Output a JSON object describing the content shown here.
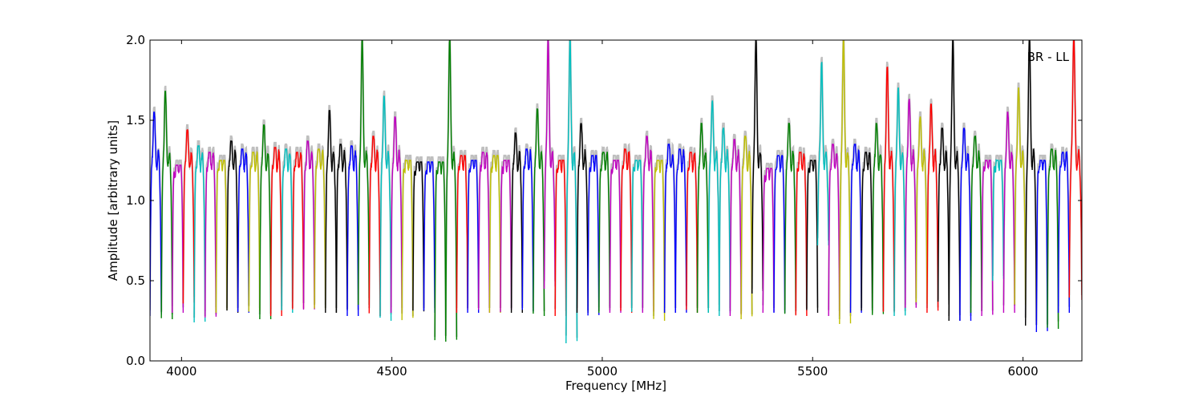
{
  "chart_data": {
    "type": "line",
    "title": "",
    "annotation": "BR - LL",
    "xlabel": "Frequency [MHz]",
    "ylabel": "Amplitude [arbitrary units]",
    "xlim": [
      3925,
      6140
    ],
    "ylim": [
      0.0,
      2.0
    ],
    "x_ticks": [
      4000,
      4500,
      5000,
      5500,
      6000
    ],
    "x_tick_labels": [
      "4000",
      "4500",
      "5000",
      "5500",
      "6000"
    ],
    "y_ticks": [
      0.0,
      0.5,
      1.0,
      1.5,
      2.0
    ],
    "y_tick_labels": [
      "0.0",
      "0.5",
      "1.0",
      "1.5",
      "2.0"
    ],
    "grid": false,
    "legend": "none",
    "background_series_color": "#bfbfbf",
    "channel_colors": [
      "#0000ff",
      "#008000",
      "#ff0000",
      "#00bfbf",
      "#bf00bf",
      "#bfbf00",
      "#000000"
    ],
    "spectral_windows": [
      {
        "x0": 3925,
        "x1": 3952,
        "peak": 1.55,
        "floor": 0.28,
        "color": "#0000ff"
      },
      {
        "x0": 3952,
        "x1": 3978,
        "peak": 1.68,
        "floor": 0.26,
        "color": "#008000"
      },
      {
        "x0": 3978,
        "x1": 4004,
        "peak": 1.22,
        "floor": 0.3,
        "color": "#bf00bf"
      },
      {
        "x0": 4004,
        "x1": 4030,
        "peak": 1.44,
        "floor": 0.35,
        "color": "#ff0000"
      },
      {
        "x0": 4030,
        "x1": 4056,
        "peak": 1.34,
        "floor": 0.24,
        "color": "#00bfbf"
      },
      {
        "x0": 4056,
        "x1": 4082,
        "peak": 1.3,
        "floor": 0.26,
        "color": "#bf00bf"
      },
      {
        "x0": 4082,
        "x1": 4108,
        "peak": 1.25,
        "floor": 0.3,
        "color": "#bfbf00"
      },
      {
        "x0": 4108,
        "x1": 4134,
        "peak": 1.37,
        "floor": 0.3,
        "color": "#000000"
      },
      {
        "x0": 4134,
        "x1": 4160,
        "peak": 1.32,
        "floor": 0.3,
        "color": "#0000ff"
      },
      {
        "x0": 4160,
        "x1": 4186,
        "peak": 1.3,
        "floor": 0.3,
        "color": "#bfbf00"
      },
      {
        "x0": 4186,
        "x1": 4212,
        "peak": 1.47,
        "floor": 0.26,
        "color": "#008000"
      },
      {
        "x0": 4212,
        "x1": 4238,
        "peak": 1.33,
        "floor": 0.28,
        "color": "#ff0000"
      },
      {
        "x0": 4238,
        "x1": 4264,
        "peak": 1.32,
        "floor": 0.3,
        "color": "#00bfbf"
      },
      {
        "x0": 4264,
        "x1": 4290,
        "peak": 1.3,
        "floor": 0.32,
        "color": "#ff0000"
      },
      {
        "x0": 4290,
        "x1": 4316,
        "peak": 1.37,
        "floor": 0.32,
        "color": "#bf00bf"
      },
      {
        "x0": 4316,
        "x1": 4342,
        "peak": 1.32,
        "floor": 0.32,
        "color": "#bfbf00"
      },
      {
        "x0": 4342,
        "x1": 4368,
        "peak": 1.56,
        "floor": 0.3,
        "color": "#000000"
      },
      {
        "x0": 4368,
        "x1": 4394,
        "peak": 1.35,
        "floor": 0.3,
        "color": "#000000"
      },
      {
        "x0": 4394,
        "x1": 4420,
        "peak": 1.34,
        "floor": 0.28,
        "color": "#0000ff"
      },
      {
        "x0": 4420,
        "x1": 4446,
        "peak": 2.0,
        "floor": 0.35,
        "color": "#008000"
      },
      {
        "x0": 4446,
        "x1": 4472,
        "peak": 1.4,
        "floor": 0.28,
        "color": "#ff0000"
      },
      {
        "x0": 4472,
        "x1": 4498,
        "peak": 1.65,
        "floor": 0.25,
        "color": "#00bfbf"
      },
      {
        "x0": 4498,
        "x1": 4524,
        "peak": 1.52,
        "floor": 0.3,
        "color": "#bf00bf"
      },
      {
        "x0": 4524,
        "x1": 4550,
        "peak": 1.25,
        "floor": 0.25,
        "color": "#bfbf00"
      },
      {
        "x0": 4550,
        "x1": 4576,
        "peak": 1.24,
        "floor": 0.3,
        "color": "#000000"
      },
      {
        "x0": 4576,
        "x1": 4602,
        "peak": 1.24,
        "floor": 0.3,
        "color": "#0000ff"
      },
      {
        "x0": 4602,
        "x1": 4628,
        "peak": 1.24,
        "floor": 0.12,
        "color": "#008000"
      },
      {
        "x0": 4628,
        "x1": 4654,
        "peak": 2.0,
        "floor": 0.12,
        "color": "#008000"
      },
      {
        "x0": 4654,
        "x1": 4680,
        "peak": 1.28,
        "floor": 0.3,
        "color": "#ff0000"
      },
      {
        "x0": 4680,
        "x1": 4706,
        "peak": 1.25,
        "floor": 0.3,
        "color": "#0000ff"
      },
      {
        "x0": 4706,
        "x1": 4732,
        "peak": 1.3,
        "floor": 0.3,
        "color": "#bf00bf"
      },
      {
        "x0": 4732,
        "x1": 4758,
        "peak": 1.28,
        "floor": 0.3,
        "color": "#bfbf00"
      },
      {
        "x0": 4758,
        "x1": 4784,
        "peak": 1.25,
        "floor": 0.3,
        "color": "#bf00bf"
      },
      {
        "x0": 4784,
        "x1": 4810,
        "peak": 1.42,
        "floor": 0.3,
        "color": "#000000"
      },
      {
        "x0": 4810,
        "x1": 4836,
        "peak": 1.32,
        "floor": 0.3,
        "color": "#0000ff"
      },
      {
        "x0": 4836,
        "x1": 4862,
        "peak": 1.57,
        "floor": 0.28,
        "color": "#008000"
      },
      {
        "x0": 4862,
        "x1": 4888,
        "peak": 2.0,
        "floor": 0.45,
        "color": "#bf00bf"
      },
      {
        "x0": 4888,
        "x1": 4914,
        "peak": 1.25,
        "floor": 0.28,
        "color": "#ff0000"
      },
      {
        "x0": 4914,
        "x1": 4940,
        "peak": 2.0,
        "floor": 0.11,
        "color": "#00bfbf"
      },
      {
        "x0": 4940,
        "x1": 4966,
        "peak": 1.48,
        "floor": 0.3,
        "color": "#000000"
      },
      {
        "x0": 4966,
        "x1": 4992,
        "peak": 1.28,
        "floor": 0.28,
        "color": "#0000ff"
      },
      {
        "x0": 4992,
        "x1": 5018,
        "peak": 1.3,
        "floor": 0.3,
        "color": "#008000"
      },
      {
        "x0": 5018,
        "x1": 5044,
        "peak": 1.25,
        "floor": 0.3,
        "color": "#bf00bf"
      },
      {
        "x0": 5044,
        "x1": 5070,
        "peak": 1.32,
        "floor": 0.3,
        "color": "#ff0000"
      },
      {
        "x0": 5070,
        "x1": 5096,
        "peak": 1.25,
        "floor": 0.3,
        "color": "#00bfbf"
      },
      {
        "x0": 5096,
        "x1": 5122,
        "peak": 1.4,
        "floor": 0.3,
        "color": "#bf00bf"
      },
      {
        "x0": 5122,
        "x1": 5148,
        "peak": 1.25,
        "floor": 0.25,
        "color": "#bfbf00"
      },
      {
        "x0": 5148,
        "x1": 5174,
        "peak": 1.35,
        "floor": 0.3,
        "color": "#0000ff"
      },
      {
        "x0": 5174,
        "x1": 5200,
        "peak": 1.32,
        "floor": 0.3,
        "color": "#0000ff"
      },
      {
        "x0": 5200,
        "x1": 5226,
        "peak": 1.3,
        "floor": 0.3,
        "color": "#ff0000"
      },
      {
        "x0": 5226,
        "x1": 5252,
        "peak": 1.48,
        "floor": 0.3,
        "color": "#008000"
      },
      {
        "x0": 5252,
        "x1": 5278,
        "peak": 1.62,
        "floor": 0.3,
        "color": "#00bfbf"
      },
      {
        "x0": 5278,
        "x1": 5304,
        "peak": 1.45,
        "floor": 0.28,
        "color": "#00bfbf"
      },
      {
        "x0": 5304,
        "x1": 5330,
        "peak": 1.38,
        "floor": 0.28,
        "color": "#bf00bf"
      },
      {
        "x0": 5330,
        "x1": 5356,
        "peak": 1.4,
        "floor": 0.26,
        "color": "#bfbf00"
      },
      {
        "x0": 5356,
        "x1": 5382,
        "peak": 2.0,
        "floor": 0.42,
        "color": "#000000"
      },
      {
        "x0": 5382,
        "x1": 5408,
        "peak": 1.2,
        "floor": 0.3,
        "color": "#bf00bf"
      },
      {
        "x0": 5408,
        "x1": 5434,
        "peak": 1.28,
        "floor": 0.3,
        "color": "#0000ff"
      },
      {
        "x0": 5434,
        "x1": 5460,
        "peak": 1.48,
        "floor": 0.28,
        "color": "#008000"
      },
      {
        "x0": 5460,
        "x1": 5486,
        "peak": 1.3,
        "floor": 0.28,
        "color": "#ff0000"
      },
      {
        "x0": 5486,
        "x1": 5512,
        "peak": 1.25,
        "floor": 0.3,
        "color": "#000000"
      },
      {
        "x0": 5512,
        "x1": 5538,
        "peak": 1.86,
        "floor": 0.72,
        "color": "#00bfbf"
      },
      {
        "x0": 5538,
        "x1": 5564,
        "peak": 1.35,
        "floor": 0.28,
        "color": "#bf00bf"
      },
      {
        "x0": 5564,
        "x1": 5590,
        "peak": 2.0,
        "floor": 0.23,
        "color": "#bfbf00"
      },
      {
        "x0": 5590,
        "x1": 5616,
        "peak": 1.35,
        "floor": 0.3,
        "color": "#0000ff"
      },
      {
        "x0": 5616,
        "x1": 5642,
        "peak": 1.3,
        "floor": 0.3,
        "color": "#000000"
      },
      {
        "x0": 5642,
        "x1": 5668,
        "peak": 1.48,
        "floor": 0.28,
        "color": "#008000"
      },
      {
        "x0": 5668,
        "x1": 5694,
        "peak": 1.83,
        "floor": 0.3,
        "color": "#ff0000"
      },
      {
        "x0": 5694,
        "x1": 5720,
        "peak": 1.7,
        "floor": 0.28,
        "color": "#00bfbf"
      },
      {
        "x0": 5720,
        "x1": 5746,
        "peak": 1.63,
        "floor": 0.32,
        "color": "#bf00bf"
      },
      {
        "x0": 5746,
        "x1": 5772,
        "peak": 1.52,
        "floor": 0.35,
        "color": "#bfbf00"
      },
      {
        "x0": 5772,
        "x1": 5798,
        "peak": 1.6,
        "floor": 0.3,
        "color": "#ff0000"
      },
      {
        "x0": 5798,
        "x1": 5824,
        "peak": 1.45,
        "floor": 0.35,
        "color": "#000000"
      },
      {
        "x0": 5824,
        "x1": 5850,
        "peak": 2.0,
        "floor": 0.25,
        "color": "#000000"
      },
      {
        "x0": 5850,
        "x1": 5876,
        "peak": 1.45,
        "floor": 0.25,
        "color": "#0000ff"
      },
      {
        "x0": 5876,
        "x1": 5902,
        "peak": 1.4,
        "floor": 0.3,
        "color": "#008000"
      },
      {
        "x0": 5902,
        "x1": 5928,
        "peak": 1.25,
        "floor": 0.28,
        "color": "#bf00bf"
      },
      {
        "x0": 5928,
        "x1": 5954,
        "peak": 1.25,
        "floor": 0.5,
        "color": "#00bfbf"
      },
      {
        "x0": 5954,
        "x1": 5980,
        "peak": 1.55,
        "floor": 0.3,
        "color": "#bf00bf"
      },
      {
        "x0": 5980,
        "x1": 6006,
        "peak": 1.7,
        "floor": 0.35,
        "color": "#bfbf00"
      },
      {
        "x0": 6006,
        "x1": 6032,
        "peak": 2.0,
        "floor": 0.22,
        "color": "#000000"
      },
      {
        "x0": 6032,
        "x1": 6058,
        "peak": 1.25,
        "floor": 0.18,
        "color": "#0000ff"
      },
      {
        "x0": 6058,
        "x1": 6084,
        "peak": 1.32,
        "floor": 0.2,
        "color": "#008000"
      },
      {
        "x0": 6084,
        "x1": 6110,
        "peak": 1.3,
        "floor": 0.3,
        "color": "#0000ff"
      },
      {
        "x0": 6110,
        "x1": 6140,
        "peak": 2.0,
        "floor": 0.38,
        "color": "#ff0000"
      }
    ]
  }
}
